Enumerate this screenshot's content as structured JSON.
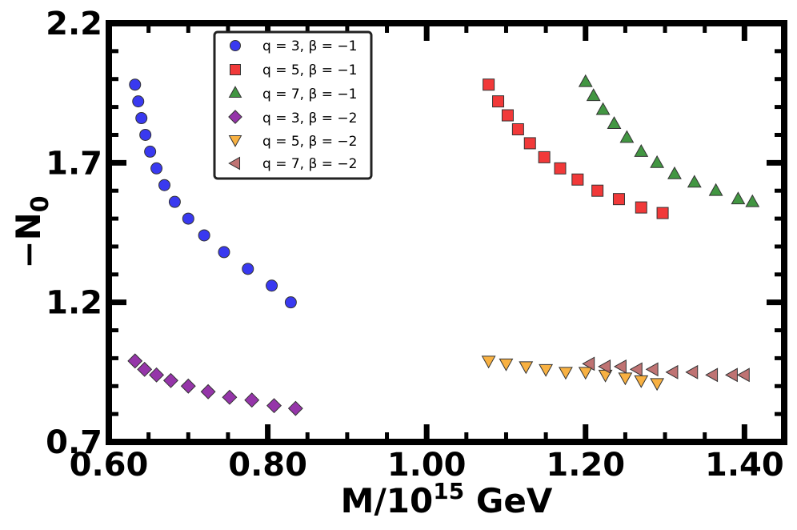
{
  "chart_data": {
    "type": "scatter",
    "title": "",
    "xlabel": "M/10",
    "xlabel_sup": "15",
    "xlabel_unit": "GeV",
    "ylabel": "−N",
    "ylabel_sub": "0",
    "xlim": [
      0.6,
      1.45
    ],
    "ylim": [
      0.7,
      2.2
    ],
    "xticks": [
      {
        "value": 0.6,
        "label": "0.60"
      },
      {
        "value": 0.8,
        "label": "0.80"
      },
      {
        "value": 1.0,
        "label": "1.00"
      },
      {
        "value": 1.2,
        "label": "1.20"
      },
      {
        "value": 1.4,
        "label": "1.40"
      }
    ],
    "yticks": [
      {
        "value": 0.7,
        "label": "0.7"
      },
      {
        "value": 1.2,
        "label": "1.2"
      },
      {
        "value": 1.7,
        "label": "1.7"
      },
      {
        "value": 2.2,
        "label": "2.2"
      }
    ],
    "legend_position": "top-left",
    "series": [
      {
        "name": "q = 3, β = −1",
        "marker": "circle",
        "color": "#2323ee",
        "x": [
          0.633,
          0.637,
          0.641,
          0.646,
          0.652,
          0.66,
          0.67,
          0.683,
          0.7,
          0.72,
          0.745,
          0.775,
          0.805,
          0.829
        ],
        "y": [
          1.98,
          1.92,
          1.86,
          1.8,
          1.74,
          1.68,
          1.62,
          1.56,
          1.5,
          1.44,
          1.38,
          1.32,
          1.26,
          1.2
        ]
      },
      {
        "name": "q = 5, β = −1",
        "marker": "square",
        "color": "#f02424",
        "x": [
          1.078,
          1.09,
          1.102,
          1.115,
          1.13,
          1.148,
          1.168,
          1.19,
          1.215,
          1.242,
          1.27,
          1.297
        ],
        "y": [
          1.98,
          1.92,
          1.87,
          1.82,
          1.77,
          1.72,
          1.68,
          1.64,
          1.6,
          1.57,
          1.54,
          1.52
        ]
      },
      {
        "name": "q = 7, β = −1",
        "marker": "triangle-up",
        "color": "#2e8b2e",
        "x": [
          1.2,
          1.21,
          1.222,
          1.236,
          1.252,
          1.27,
          1.29,
          1.312,
          1.337,
          1.364,
          1.392,
          1.41
        ],
        "y": [
          1.99,
          1.94,
          1.89,
          1.84,
          1.79,
          1.74,
          1.7,
          1.66,
          1.63,
          1.6,
          1.57,
          1.56
        ]
      },
      {
        "name": "q = 3, β = −2",
        "marker": "diamond",
        "color": "#8a1fa0",
        "x": [
          0.633,
          0.645,
          0.66,
          0.678,
          0.7,
          0.725,
          0.752,
          0.78,
          0.808,
          0.835
        ],
        "y": [
          0.99,
          0.96,
          0.94,
          0.92,
          0.9,
          0.88,
          0.86,
          0.85,
          0.83,
          0.82
        ]
      },
      {
        "name": "q = 5, β = −2",
        "marker": "triangle-down",
        "color": "#f7a92e",
        "x": [
          1.078,
          1.1,
          1.125,
          1.15,
          1.175,
          1.2,
          1.225,
          1.25,
          1.27,
          1.29
        ],
        "y": [
          0.99,
          0.98,
          0.97,
          0.96,
          0.95,
          0.95,
          0.94,
          0.93,
          0.92,
          0.91
        ]
      },
      {
        "name": "q = 7, β = −2",
        "marker": "triangle-left",
        "color": "#b86464",
        "x": [
          1.205,
          1.225,
          1.245,
          1.265,
          1.285,
          1.31,
          1.335,
          1.36,
          1.385,
          1.4
        ],
        "y": [
          0.98,
          0.97,
          0.97,
          0.96,
          0.96,
          0.95,
          0.95,
          0.94,
          0.94,
          0.94
        ]
      }
    ]
  }
}
